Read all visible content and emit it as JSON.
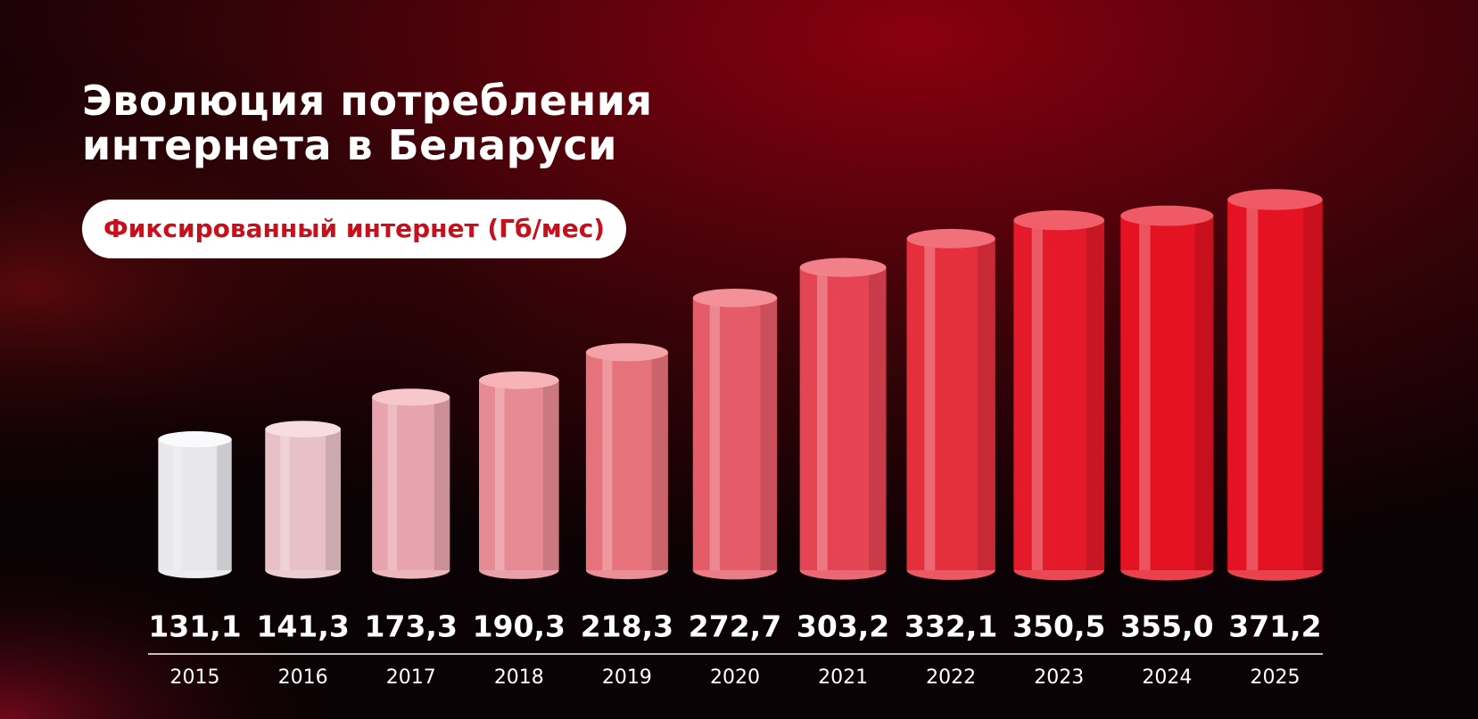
{
  "chart_data": {
    "type": "bar",
    "title": "Эволюция потребления интернета в Беларуси",
    "subtitle": "Фиксированный интернет (Гб/мес)",
    "categories": [
      "2015",
      "2016",
      "2017",
      "2018",
      "2019",
      "2020",
      "2021",
      "2022",
      "2023",
      "2024",
      "2025"
    ],
    "values": [
      131.1,
      141.3,
      173.3,
      190.3,
      218.3,
      272.7,
      303.2,
      332.1,
      350.5,
      355.0,
      371.2
    ],
    "value_labels": [
      "131,1",
      "141,3",
      "173,3",
      "190,3",
      "218,3",
      "272,7",
      "303,2",
      "332,1",
      "350,5",
      "355,0",
      "371,2"
    ]
  }
}
